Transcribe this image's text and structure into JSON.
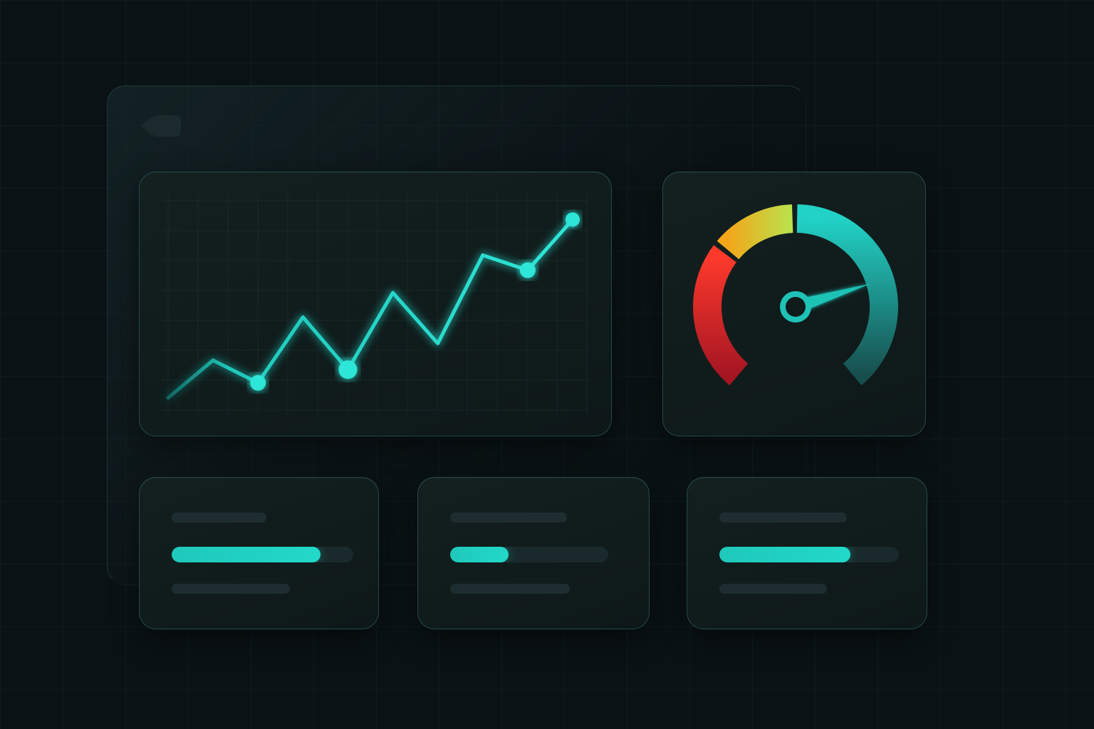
{
  "colors": {
    "background": "#0a1215",
    "panel": "#111c1d",
    "panel_border": "#2f5558",
    "accent": "#22d8c9",
    "gauge_red": "#e0262a",
    "gauge_yellow": "#f2b11e",
    "gauge_green": "#b6e04a",
    "gauge_teal": "#1fbfb6"
  },
  "header": {
    "back_icon": "back-arrow-icon"
  },
  "chart_data": {
    "type": "line",
    "series": [
      {
        "values": [
          0.5,
          2.5,
          1.3,
          4.8,
          2.0,
          6.1,
          3.4,
          8.1,
          7.3,
          10.0
        ]
      }
    ],
    "highlighted_points": [
      2,
      4,
      8
    ],
    "ylim": [
      0,
      11
    ],
    "grid": true
  },
  "gauge": {
    "icon": "speedometer-icon",
    "value_percent": 76,
    "segments": [
      "red",
      "yellow-green",
      "teal"
    ]
  },
  "cards": [
    {
      "progress_percent": 82
    },
    {
      "progress_percent": 37
    },
    {
      "progress_percent": 73
    }
  ]
}
